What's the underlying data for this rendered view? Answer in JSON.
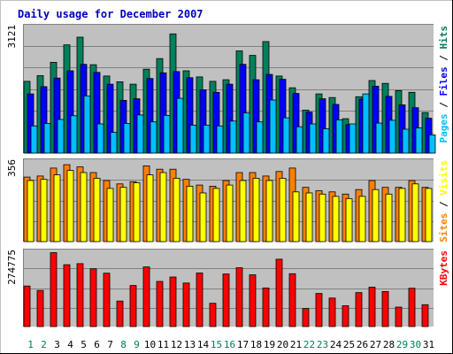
{
  "title": "Daily usage for December 2007",
  "chart_data": {
    "type": "bar",
    "title": "Daily usage for December 2007",
    "categories": [
      "1",
      "2",
      "3",
      "4",
      "5",
      "6",
      "7",
      "8",
      "9",
      "10",
      "11",
      "12",
      "13",
      "14",
      "15",
      "16",
      "17",
      "18",
      "19",
      "20",
      "21",
      "22",
      "23",
      "24",
      "25",
      "26",
      "27",
      "28",
      "29",
      "30",
      "31"
    ],
    "weekend_days": [
      "1",
      "2",
      "8",
      "9",
      "15",
      "16",
      "22",
      "23",
      "29",
      "30"
    ],
    "panels": [
      {
        "name": "requests",
        "ymax_label": "3121",
        "ymax": 3121,
        "right_label": [
          {
            "text": "Pages",
            "color": "#00C0FF"
          },
          {
            "text": " / ",
            "color": "#000000"
          },
          {
            "text": "Files",
            "color": "#0000FF"
          },
          {
            "text": " / ",
            "color": "#000000"
          },
          {
            "text": "Hits",
            "color": "#00805C"
          }
        ],
        "series": [
          {
            "name": "Hits",
            "color": "#00805C",
            "values": [
              1770,
              1910,
              2240,
              2670,
              2860,
              2180,
              1900,
              1760,
              1700,
              2070,
              2330,
              2940,
              2030,
              1880,
              1770,
              1810,
              2520,
              2410,
              2750,
              1900,
              1610,
              1060,
              1460,
              1370,
              850,
              1390,
              1790,
              1720,
              1540,
              1500,
              1000
            ]
          },
          {
            "name": "Files",
            "color": "#0000FF",
            "values": [
              1460,
              1640,
              1850,
              2030,
              2190,
              1990,
              1700,
              1300,
              1340,
              1840,
              1980,
              2010,
              1860,
              1560,
              1500,
              1700,
              2190,
              1810,
              1940,
              1820,
              1470,
              1010,
              1340,
              1200,
              700,
              1330,
              1650,
              1400,
              1190,
              1120,
              860
            ]
          },
          {
            "name": "Pages",
            "color": "#00C0FF",
            "values": [
              670,
              730,
              830,
              920,
              1410,
              720,
              510,
              730,
              940,
              770,
              930,
              1350,
              690,
              690,
              670,
              790,
              990,
              770,
              1310,
              870,
              650,
              720,
              600,
              820,
              720,
              1460,
              740,
              810,
              590,
              620,
              450
            ]
          }
        ]
      },
      {
        "name": "sites-visits",
        "ymax_label": "356",
        "ymax": 356,
        "right_label": [
          {
            "text": "Sites",
            "color": "#FF8000"
          },
          {
            "text": " / ",
            "color": "#000000"
          },
          {
            "text": "Visits",
            "color": "#FFFF00"
          }
        ],
        "series": [
          {
            "name": "Visits",
            "color": "#FF8000",
            "values": [
              285,
              290,
              325,
              340,
              330,
              305,
              270,
              255,
              265,
              335,
              320,
              320,
              275,
              250,
              245,
              270,
              305,
              305,
              290,
              310,
              325,
              240,
              225,
              220,
              210,
              230,
              270,
              240,
              240,
              270,
              240
            ]
          },
          {
            "name": "Sites",
            "color": "#FFFF00",
            "values": [
              270,
              275,
              295,
              315,
              305,
              280,
              235,
              240,
              260,
              295,
              305,
              280,
              245,
              215,
              235,
              250,
              270,
              280,
              270,
              280,
              220,
              215,
              210,
              200,
              190,
              200,
              230,
              210,
              235,
              255,
              235
            ]
          }
        ]
      },
      {
        "name": "kbytes",
        "ymax_label": "274775",
        "ymax": 274775,
        "right_label": [
          {
            "text": "KBytes",
            "color": "#FF0000"
          }
        ],
        "series": [
          {
            "name": "KBytes",
            "color": "#FF0000",
            "values": [
              148000,
              132000,
              270000,
              226000,
              230000,
              211000,
              195000,
              93000,
              150000,
              218000,
              165000,
              181000,
              159000,
              196000,
              85000,
              192000,
              215000,
              189000,
              141000,
              246000,
              193000,
              66000,
              121000,
              104000,
              76000,
              124000,
              144000,
              128000,
              71000,
              140000,
              80000
            ]
          }
        ]
      }
    ]
  }
}
